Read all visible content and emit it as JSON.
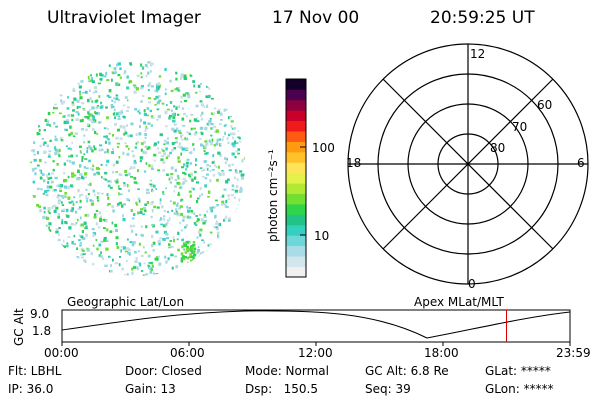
{
  "header": {
    "instrument": "Ultraviolet Imager",
    "date": "17 Nov 00",
    "time": "20:59:25 UT"
  },
  "colorbar": {
    "unit_label": "photon cm⁻²s⁻¹",
    "ticks": [
      "100",
      "10"
    ],
    "colors": [
      "#f0f0f0",
      "#d2e6ec",
      "#a8dce6",
      "#6fd6da",
      "#33cfbf",
      "#22c486",
      "#2fd44a",
      "#73df33",
      "#b2ea33",
      "#e2f24a",
      "#ffe45a",
      "#ffc22a",
      "#ff9a11",
      "#ff5a11",
      "#f01a1a",
      "#c8002a",
      "#8c0040",
      "#4c0050",
      "#120028"
    ]
  },
  "polar": {
    "lat_labels": [
      "60",
      "70",
      "80"
    ],
    "mlt_labels": {
      "top": "12",
      "left": "18",
      "right": "6",
      "bottom": "0"
    }
  },
  "timeline": {
    "left_title": "Geographic Lat/Lon",
    "right_title": "Apex MLat/MLT",
    "y_axis_label": "GC Alt",
    "y_ticks": [
      "9.0",
      "1.8"
    ],
    "x_ticks": [
      "00:00",
      "06:00",
      "12:00",
      "18:00",
      "23:59"
    ],
    "marker_time": "20:59",
    "marker_color": "#dd0000"
  },
  "info": {
    "filter": "Flt: LBHL",
    "ip": "IP: 36.0",
    "door": "Door: Closed",
    "gain": "Gain: 13",
    "mode": "Mode: Normal",
    "dsp": "Dsp:   150.5",
    "gc_alt": "GC Alt: 6.8 Re",
    "seq": "Seq: 39",
    "glat": "GLat: *****",
    "glon": "GLon: *****"
  }
}
